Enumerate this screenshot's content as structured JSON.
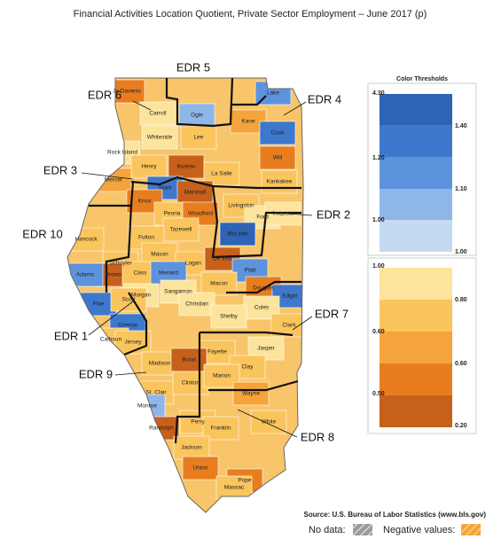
{
  "title": "Financial Activities Location Quotient, Private Sector Employment – June 2017 (p)",
  "regions": [
    "EDR 5",
    "EDR 6",
    "EDR 4",
    "EDR 3",
    "EDR 2",
    "EDR 10",
    "EDR 7",
    "EDR 1",
    "EDR 9",
    "EDR 8"
  ],
  "counties": [
    "Jo Daviess",
    "Carroll",
    "Ogle",
    "Lake",
    "Kane",
    "Cook",
    "Whiteside",
    "Lee",
    "Rock Island",
    "Henry",
    "Bureau",
    "La Salle",
    "Will",
    "Kankakee",
    "Mercer",
    "Stark",
    "Marshall",
    "Knox",
    "Peoria",
    "Woodford",
    "Livingston",
    "Ford",
    "Iroquois",
    "Hancock",
    "Tazewell",
    "Fulton",
    "McLean",
    "Mason",
    "Logan",
    "De Witt",
    "Schuyler",
    "Brown",
    "Cass",
    "Menard",
    "Piatt",
    "Adams",
    "Macon",
    "Morgan",
    "Sangamon",
    "Douglas",
    "Edgar",
    "Pike",
    "Scott",
    "Christian",
    "Coles",
    "Shelby",
    "Greene",
    "Calhoun",
    "Jersey",
    "Clark",
    "Fayette",
    "Jasper",
    "Madison",
    "Bond",
    "Clay",
    "St. Clair",
    "Clinton",
    "Marion",
    "Monroe",
    "Wayne",
    "Randolph",
    "Perry",
    "White",
    "Franklin",
    "Jackson",
    "Pope",
    "Union",
    "Massac"
  ],
  "legend": {
    "title": "Color Thresholds",
    "upper": {
      "left": [
        "4.30",
        "1.20",
        "1.00"
      ],
      "right": [
        "1.40",
        "1.10",
        "1.00"
      ]
    },
    "lower": {
      "left": [
        "1.00",
        "0.60",
        "0.50"
      ],
      "right": [
        "0.80",
        "0.60",
        "0.20"
      ]
    }
  },
  "source": "Source: U.S. Bureau of Labor Statistics (www.bls.gov)",
  "footer": {
    "no_data": "No data:",
    "negative": "Negative values:"
  }
}
